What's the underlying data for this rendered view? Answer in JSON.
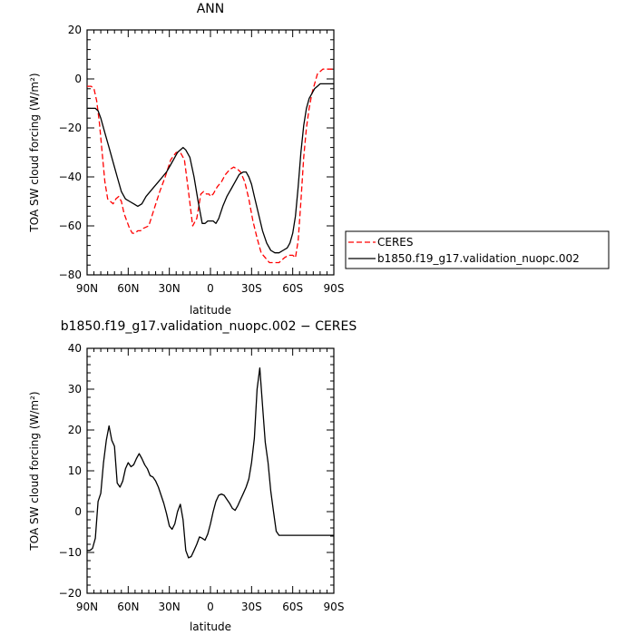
{
  "chart_data": [
    {
      "type": "line",
      "title": "ANN",
      "xlabel": "latitude",
      "ylabel": "TOA SW cloud forcing (W/m²)",
      "xlim": [
        90,
        -90
      ],
      "ylim": [
        -80,
        20
      ],
      "xticks": [
        90,
        60,
        30,
        0,
        -30,
        -60,
        -90
      ],
      "xtick_labels": [
        "90N",
        "60N",
        "30N",
        "0",
        "30S",
        "60S",
        "90S"
      ],
      "yticks": [
        -80,
        -60,
        -40,
        -20,
        0,
        20
      ],
      "ytick_labels": [
        "−80",
        "−60",
        "−40",
        "−20",
        "0",
        "20"
      ],
      "legend_placement": "right",
      "series": [
        {
          "name": "CERES",
          "color": "#ff0000",
          "dash": "dashed",
          "x": [
            90,
            87,
            85,
            83,
            81,
            79,
            77,
            75,
            73,
            71,
            69,
            67,
            65,
            63,
            61,
            59,
            57,
            55,
            53,
            51,
            49,
            45,
            41,
            37,
            33,
            29,
            25,
            22,
            19,
            16,
            13,
            10,
            7,
            5,
            3,
            1,
            0,
            -2,
            -5,
            -8,
            -11,
            -14,
            -17,
            -20,
            -22,
            -25,
            -28,
            -31,
            -34,
            -37,
            -40,
            -43,
            -46,
            -50,
            -54,
            -57,
            -60,
            -62,
            -64,
            -66,
            -68,
            -70,
            -72,
            -74,
            -76,
            -78,
            -80,
            -82,
            -84,
            -86,
            -88,
            -90
          ],
          "y": [
            -3,
            -3,
            -4,
            -9,
            -18,
            -30,
            -42,
            -49,
            -50,
            -51,
            -49,
            -48,
            -50,
            -55,
            -58,
            -61,
            -63,
            -63,
            -62,
            -62,
            -61,
            -60,
            -53,
            -46,
            -40,
            -33,
            -30,
            -30,
            -33,
            -46,
            -60,
            -57,
            -47,
            -46,
            -47,
            -47,
            -48,
            -47,
            -44,
            -42,
            -39,
            -37,
            -36,
            -37,
            -38,
            -42,
            -49,
            -58,
            -65,
            -71,
            -73,
            -75,
            -75,
            -75,
            -73,
            -72,
            -72,
            -73,
            -66,
            -50,
            -32,
            -20,
            -12,
            -6,
            -2,
            2,
            3,
            4,
            4,
            4,
            4,
            4
          ]
        },
        {
          "name": "b1850.f19_g17.validation_nuopc.002",
          "color": "#000000",
          "dash": "solid",
          "x": [
            90,
            88,
            86,
            84,
            82,
            80,
            77,
            74,
            71,
            68,
            65,
            62,
            59,
            56,
            53,
            50,
            47,
            44,
            41,
            38,
            35,
            32,
            29,
            26,
            24,
            22,
            20,
            18,
            15,
            12,
            9,
            6,
            4,
            2,
            0,
            -2,
            -4,
            -6,
            -9,
            -12,
            -15,
            -18,
            -21,
            -24,
            -26,
            -28,
            -30,
            -32,
            -35,
            -38,
            -41,
            -44,
            -47,
            -50,
            -53,
            -56,
            -58,
            -60,
            -62,
            -64,
            -66,
            -68,
            -70,
            -72,
            -74,
            -76,
            -78,
            -80,
            -82,
            -84,
            -86,
            -88,
            -90
          ],
          "y": [
            -12,
            -12,
            -12,
            -12,
            -13,
            -16,
            -22,
            -28,
            -34,
            -40,
            -46,
            -49,
            -50,
            -51,
            -52,
            -51,
            -48,
            -46,
            -44,
            -42,
            -40,
            -38,
            -35,
            -32,
            -30,
            -29,
            -28,
            -29,
            -32,
            -40,
            -50,
            -59,
            -59,
            -58,
            -58,
            -58,
            -59,
            -57,
            -52,
            -48,
            -45,
            -42,
            -39,
            -38,
            -38,
            -40,
            -43,
            -48,
            -55,
            -62,
            -67,
            -70,
            -71,
            -71,
            -70,
            -69,
            -67,
            -63,
            -56,
            -44,
            -30,
            -19,
            -12,
            -8,
            -6,
            -4,
            -3,
            -2,
            -2,
            -2,
            -2,
            -2,
            -2
          ]
        }
      ]
    },
    {
      "type": "line",
      "title": "b1850.f19_g17.validation_nuopc.002 − CERES",
      "xlabel": "latitude",
      "ylabel": "TOA SW cloud forcing (W/m²)",
      "xlim": [
        90,
        -90
      ],
      "ylim": [
        -20,
        40
      ],
      "xticks": [
        90,
        60,
        30,
        0,
        -30,
        -60,
        -90
      ],
      "xtick_labels": [
        "90N",
        "60N",
        "30N",
        "0",
        "30S",
        "60S",
        "90S"
      ],
      "yticks": [
        -20,
        -10,
        0,
        10,
        20,
        30,
        40
      ],
      "ytick_labels": [
        "−20",
        "−10",
        "0",
        "10",
        "20",
        "30",
        "40"
      ],
      "series": [
        {
          "color": "#000000",
          "dash": "solid",
          "x": [
            90,
            88,
            86,
            84,
            82,
            80,
            78,
            76,
            74,
            72,
            70,
            68,
            66,
            64,
            62,
            60,
            58,
            56,
            54,
            52,
            50,
            48,
            46,
            44,
            42,
            40,
            38,
            36,
            34,
            32,
            30,
            28,
            26,
            24,
            22,
            20,
            18,
            16,
            14,
            12,
            10,
            8,
            6,
            4,
            2,
            0,
            -2,
            -4,
            -6,
            -8,
            -10,
            -12,
            -14,
            -16,
            -18,
            -20,
            -22,
            -24,
            -26,
            -28,
            -30,
            -32,
            -34,
            -36,
            -38,
            -40,
            -42,
            -44,
            -46,
            -48,
            -50,
            -52,
            -54,
            -56,
            -58,
            -60,
            -62,
            -64,
            -66,
            -68,
            -70,
            -72,
            -74,
            -76,
            -78,
            -80,
            -82,
            -84,
            -86,
            -88,
            -90
          ],
          "y": [
            -9.5,
            -9.5,
            -9,
            -6.5,
            2.5,
            4.5,
            12,
            17.5,
            21,
            17.5,
            16,
            7,
            6,
            7.5,
            10.5,
            12,
            11,
            11.5,
            13,
            14.2,
            13,
            11.5,
            10.5,
            8.8,
            8.5,
            7.5,
            6,
            4,
            2,
            -0.5,
            -3.5,
            -4.3,
            -3,
            0,
            1.8,
            -2,
            -9.5,
            -11.3,
            -11,
            -9.5,
            -8,
            -6.2,
            -6.5,
            -7,
            -5.5,
            -3,
            0,
            2.5,
            4,
            4.3,
            4,
            3,
            2,
            0.8,
            0.3,
            1.5,
            3,
            4.5,
            6,
            8,
            12,
            18,
            30,
            35.2,
            26,
            17,
            12,
            5,
            0,
            -4.8,
            -5.8,
            -5.8,
            -5.8,
            -5.8,
            -5.8,
            -5.8,
            -5.8,
            -5.8,
            -5.8,
            -5.8,
            -5.8,
            -5.8,
            -5.8,
            -5.8,
            -5.8,
            -5.8,
            -5.8,
            -5.8,
            -5.8,
            -5.8,
            -5.8
          ]
        }
      ]
    }
  ]
}
